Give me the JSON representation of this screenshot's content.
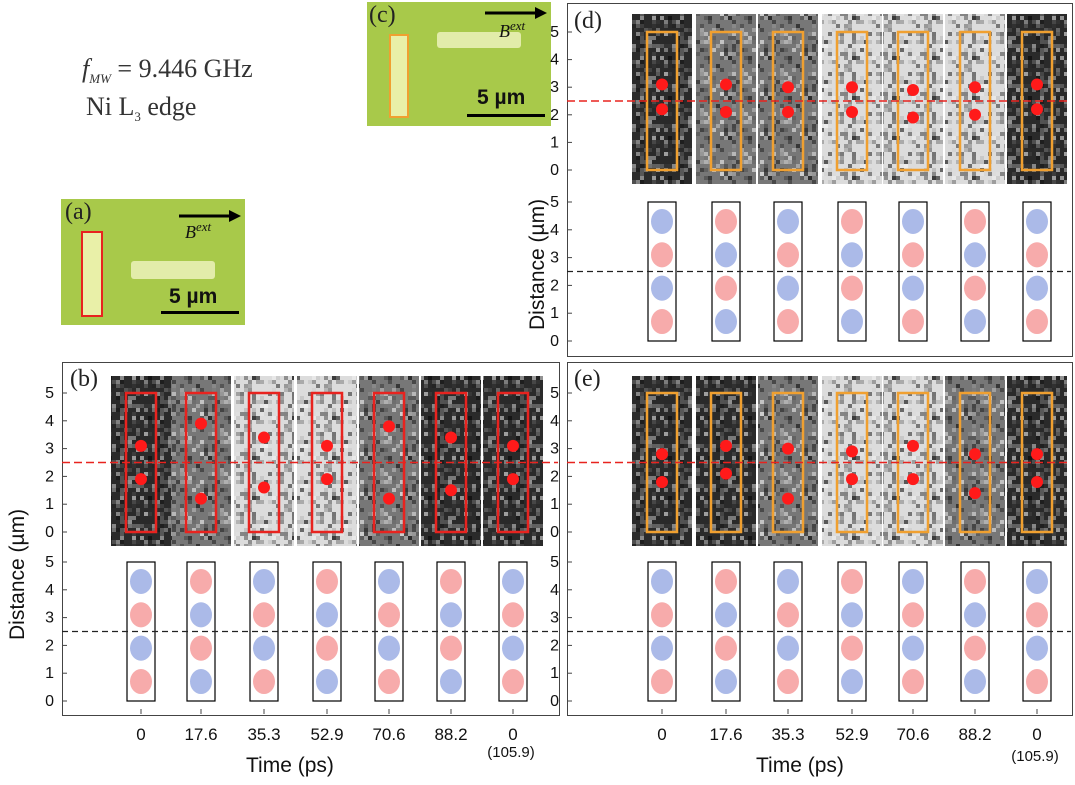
{
  "header": {
    "freq_symbol": "f",
    "freq_sub": "MW",
    "freq_value": " = 9.446 GHz",
    "edge_pre": "Ni L",
    "edge_sub": "3",
    "edge_post": " edge"
  },
  "panels": {
    "a": "(a)",
    "b": "(b)",
    "c": "(c)",
    "d": "(d)",
    "e": "(e)"
  },
  "field_label": "B",
  "field_sup": "ext",
  "scale_bar": "5 µm",
  "axes": {
    "ylabel": "Distance (µm)",
    "xlabel": "Time (ps)",
    "y_ticks": [
      "0",
      "1",
      "2",
      "3",
      "4",
      "5"
    ],
    "x_ticks": [
      "0",
      "17.6",
      "35.3",
      "52.9",
      "70.6",
      "88.2",
      "0"
    ],
    "x_extra": "(105.9)"
  },
  "colors": {
    "green": "#a8c94a",
    "red_frame": "#e8231f",
    "orange_frame": "#f0a030",
    "red_dot": "#ff1a1a",
    "sim_red": "#e44",
    "sim_blue": "#46c"
  },
  "chart_data": {
    "type": "image-series",
    "time_ps": [
      0,
      17.6,
      35.3,
      52.9,
      70.6,
      88.2,
      105.9
    ],
    "panel_b_dots_um": [
      [
        3.1,
        1.9
      ],
      [
        3.9,
        1.2
      ],
      [
        3.4,
        1.6
      ],
      [
        3.1,
        1.9
      ],
      [
        3.8,
        1.2
      ],
      [
        3.4,
        1.5
      ],
      [
        3.1,
        1.9
      ]
    ],
    "panel_d_dots_um": [
      [
        3.1,
        2.2
      ],
      [
        3.1,
        2.1
      ],
      [
        3.0,
        2.1
      ],
      [
        3.0,
        2.1
      ],
      [
        2.9,
        1.9
      ],
      [
        3.0,
        2.0
      ],
      [
        3.1,
        2.2
      ]
    ],
    "panel_e_dots_um": [
      [
        2.8,
        1.8
      ],
      [
        3.1,
        2.1
      ],
      [
        3.0,
        1.2
      ],
      [
        2.9,
        1.9
      ],
      [
        3.1,
        1.9
      ],
      [
        2.8,
        1.4
      ],
      [
        2.8,
        1.8
      ]
    ],
    "center_line_um": 2.5
  }
}
